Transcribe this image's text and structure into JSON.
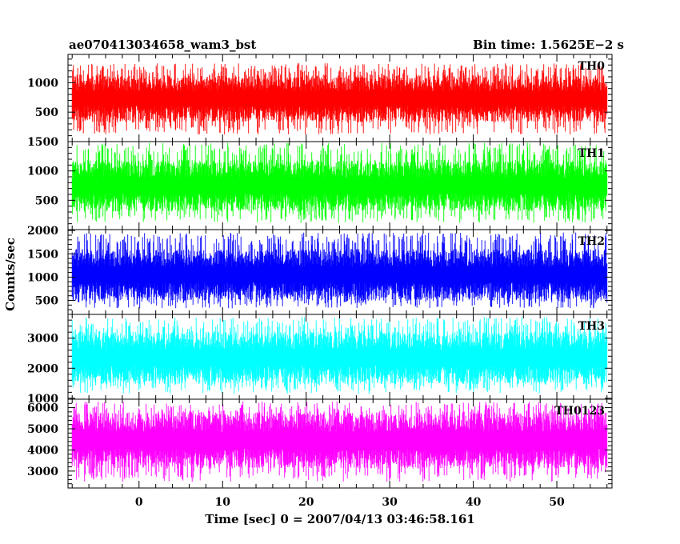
{
  "header": {
    "object_name": "ae070413034658_wam3_bst",
    "bin_time": "Bin time: 1.5625E−2 s"
  },
  "chart_data": {
    "type": "line",
    "title": "ae070413034658_wam3_bst",
    "subtitle": "Bin time: 1.5625E−2 s",
    "xlabel": "Time [sec] 0 = 2007/04/13 03:46:58.161",
    "ylabel": "Counts/sec",
    "xlim": [
      -8.5,
      56.6
    ],
    "data_x_range": [
      -8.0,
      56.0
    ],
    "x_ticks": [
      0,
      10,
      20,
      30,
      40,
      50
    ],
    "grid": false,
    "legend": "none",
    "panels": [
      {
        "name": "TH0",
        "color": "#ff0000",
        "ylim": [
          0,
          1480
        ],
        "yticks": [
          500,
          1000
        ],
        "mean": 730,
        "noise_low": 120,
        "noise_high": 1330,
        "spread": 220
      },
      {
        "name": "TH1",
        "color": "#00ff00",
        "ylim": [
          0,
          1500
        ],
        "yticks": [
          500,
          1000,
          1500
        ],
        "mean": 750,
        "noise_low": 110,
        "noise_high": 1480,
        "spread": 240
      },
      {
        "name": "TH2",
        "color": "#0000ff",
        "ylim": [
          200,
          2020
        ],
        "yticks": [
          500,
          1000,
          1500,
          2000
        ],
        "mean": 1050,
        "noise_low": 330,
        "noise_high": 1960,
        "spread": 300
      },
      {
        "name": "TH3",
        "color": "#00ffff",
        "ylim": [
          970,
          3790
        ],
        "yticks": [
          1000,
          2000,
          3000
        ],
        "mean": 2350,
        "noise_low": 1150,
        "noise_high": 3700,
        "spread": 480
      },
      {
        "name": "TH0123",
        "color": "#ff00ff",
        "ylim": [
          2200,
          6400
        ],
        "yticks": [
          3000,
          4000,
          5000,
          6000
        ],
        "mean": 4450,
        "noise_low": 2500,
        "noise_high": 6300,
        "spread": 720
      }
    ]
  }
}
